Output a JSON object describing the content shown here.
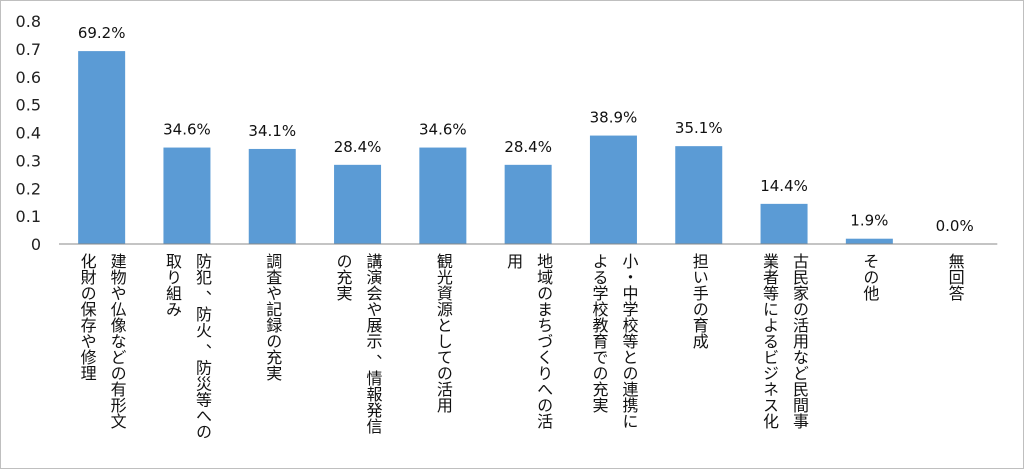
{
  "chart_data": {
    "type": "bar",
    "categories": [
      "建物や仏像などの有形文\n化財の保存や修理",
      "防犯 、防火 、防災等への\n取り組み",
      "調査や記録の充実",
      "講演会や展示 、情報発信\nの充実",
      "観光資源としての活用",
      "地域のまちづくりへの活\n用",
      "小・中学校等との連携に\nよる学校教育での充実",
      "担い手の育成",
      "古民家の活用など民間事\n業者等によるビジネス化",
      "その他",
      "無回答"
    ],
    "values": [
      0.692,
      0.346,
      0.341,
      0.284,
      0.346,
      0.284,
      0.389,
      0.351,
      0.144,
      0.019,
      0.0
    ],
    "data_labels": [
      "69.2%",
      "34.6%",
      "34.1%",
      "28.4%",
      "34.6%",
      "28.4%",
      "38.9%",
      "35.1%",
      "14.4%",
      "1.9%",
      "0.0%"
    ],
    "y_ticks": [
      "0",
      "0.1",
      "0.2",
      "0.3",
      "0.4",
      "0.5",
      "0.6",
      "0.7",
      "0.8"
    ],
    "ylim": [
      0,
      0.8
    ],
    "grid": false,
    "legend": "none",
    "bar_color": "#5b9bd5",
    "axis_color": "#888888"
  }
}
